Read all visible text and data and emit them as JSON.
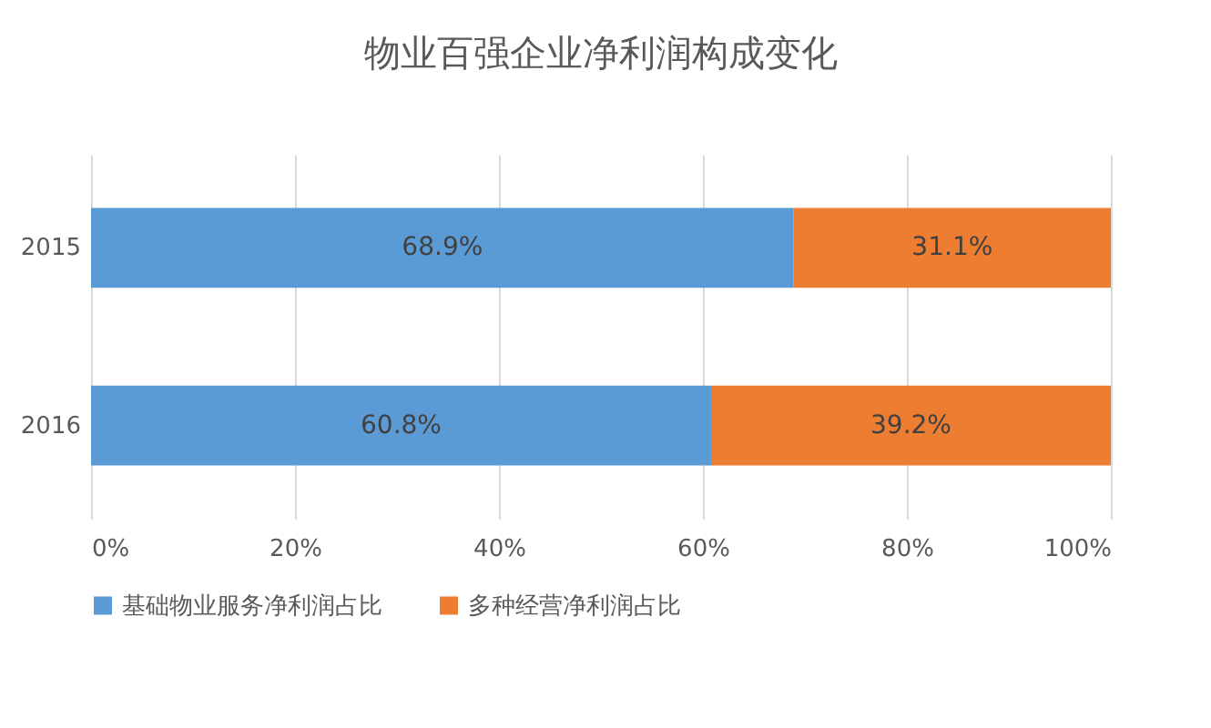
{
  "chart_data": {
    "type": "bar",
    "orientation": "horizontal",
    "stacked": true,
    "title": "物业百强企业净利润构成变化",
    "categories": [
      "2015",
      "2016"
    ],
    "series": [
      {
        "name": "基础物业服务净利润占比",
        "color": "#5b9bd5",
        "values": [
          68.9,
          60.8
        ],
        "value_labels": [
          "68.9%",
          "60.8%"
        ]
      },
      {
        "name": "多种经营净利润占比",
        "color": "#ed7d31",
        "values": [
          31.1,
          39.2
        ],
        "value_labels": [
          "31.1%",
          "39.2%"
        ]
      }
    ],
    "xlim": [
      0,
      100
    ],
    "xticks": [
      {
        "value": 0,
        "label": "0%"
      },
      {
        "value": 20,
        "label": "20%"
      },
      {
        "value": 40,
        "label": "40%"
      },
      {
        "value": 60,
        "label": "60%"
      },
      {
        "value": 80,
        "label": "80%"
      },
      {
        "value": 100,
        "label": "100%"
      }
    ],
    "grid": "x",
    "legend": "bottom"
  }
}
